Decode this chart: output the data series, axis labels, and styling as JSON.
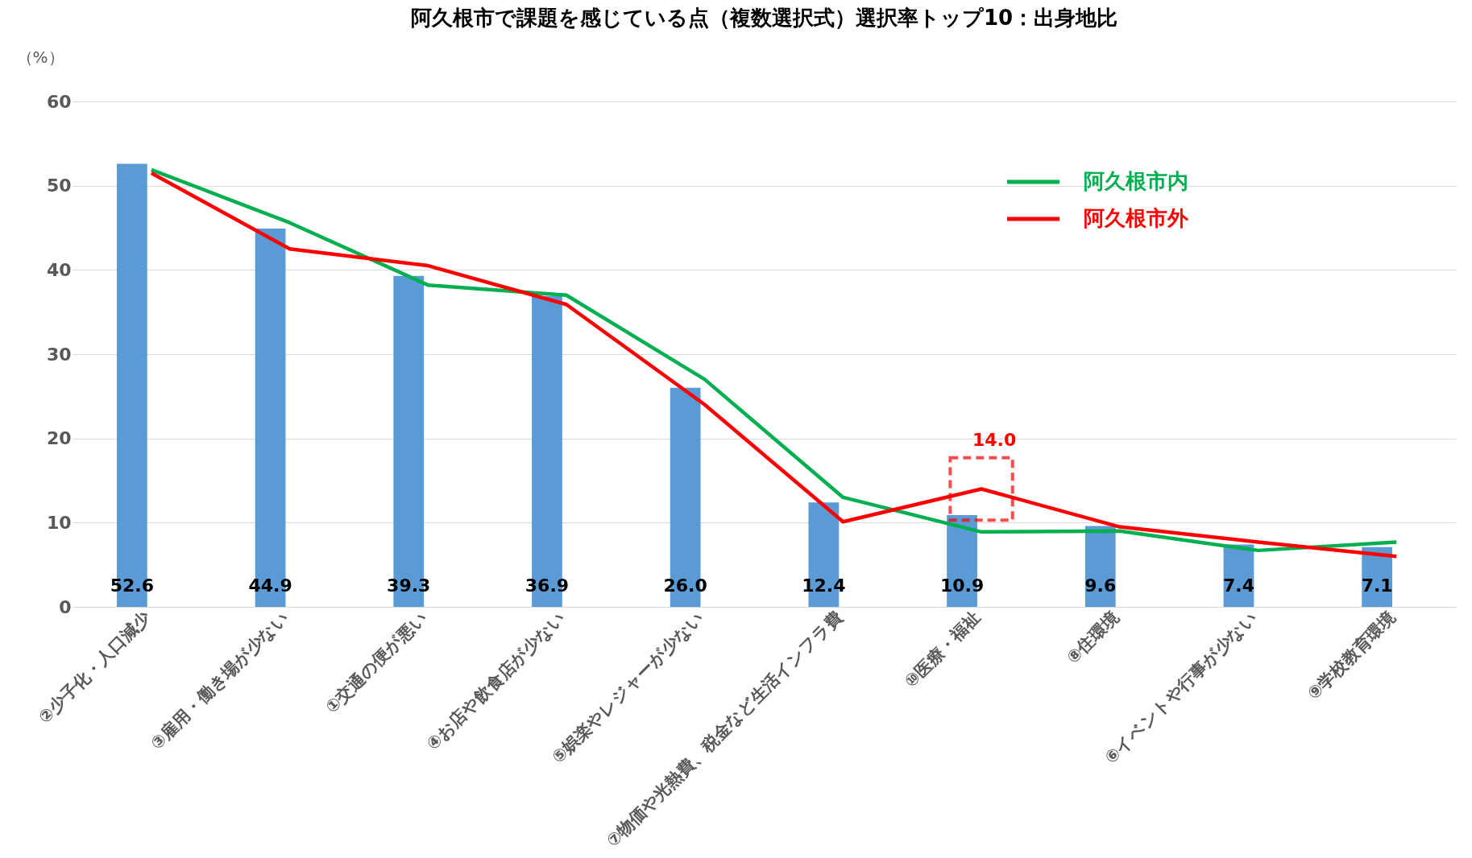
{
  "chart_data": {
    "type": "bar",
    "title": "阿久根市で課題を感じている点（複数選択式）選択率トップ10：出身地比",
    "ylabel": "（%）",
    "categories": [
      "②少子化・人口減少",
      "③雇用・働き場が少ない",
      "①交通の便が悪い",
      "④お店や飲食店が少ない",
      "⑤娯楽やレジャーが少ない",
      "⑦物価や光熱費、税金など生活インフラ費",
      "⑩医療・福祉",
      "⑧住環境",
      "⑥イベントや行事が少ない",
      "⑨学校教育環境"
    ],
    "series": [
      {
        "color": "#5b9bd5",
        "values": [
          52.6,
          44.9,
          39.3,
          36.9,
          26.0,
          12.4,
          10.9,
          9.6,
          7.4,
          7.1
        ],
        "value_labels": [
          "52.6",
          "44.9",
          "39.3",
          "36.9",
          "26.0",
          "12.4",
          "10.9",
          "9.6",
          "7.4",
          "7.1"
        ]
      },
      {
        "type": "line",
        "name": "阿久根市内",
        "color": "#00b050",
        "values": [
          51.9,
          45.6,
          38.2,
          37.0,
          27.0,
          13.0,
          8.9,
          9.0,
          6.7,
          7.7
        ]
      },
      {
        "type": "line",
        "name": "阿久根市外",
        "color": "#ff0000",
        "values": [
          51.5,
          42.5,
          40.5,
          35.9,
          24.0,
          10.1,
          14.0,
          9.5,
          7.7,
          6.0
        ],
        "value_labels": [
          null,
          null,
          null,
          null,
          null,
          null,
          "14.0",
          null,
          null,
          null
        ]
      }
    ],
    "ylim": [
      0,
      60
    ],
    "yticks": [
      0,
      10,
      20,
      30,
      40,
      50,
      60
    ],
    "grid": "y",
    "legend": "top right"
  }
}
